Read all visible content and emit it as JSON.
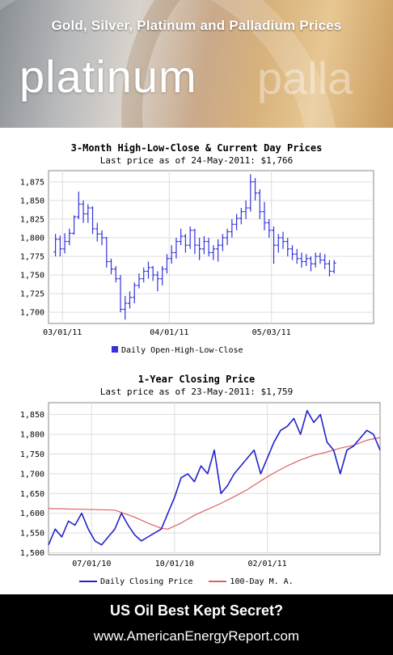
{
  "banner": {
    "title": "Gold, Silver, Platinum and Palladium Prices",
    "word_main": "platinum",
    "word_ghost": "palla"
  },
  "colors": {
    "ohlc": "#3333dd",
    "closing": "#2222cc",
    "ma": "#e06060",
    "frame": "#888888",
    "grid": "#dddddd"
  },
  "chart_data": [
    {
      "type": "line",
      "subtype": "ohlc",
      "title": "3-Month High-Low-Close & Current Day Prices",
      "subtitle": "Last price as of 24-May-2011: $1,766",
      "xlabel": "",
      "ylabel": "",
      "ylim": [
        1685,
        1890
      ],
      "yticks": [
        1700,
        1725,
        1750,
        1775,
        1800,
        1825,
        1850,
        1875
      ],
      "ytick_labels": [
        "1,700",
        "1,725",
        "1,750",
        "1,775",
        "1,800",
        "1,825",
        "1,850",
        "1,875"
      ],
      "xlim": [
        0,
        70
      ],
      "xticks": [
        {
          "pos": 3,
          "label": "03/01/11"
        },
        {
          "pos": 26,
          "label": "04/01/11"
        },
        {
          "pos": 48,
          "label": "05/03/11"
        }
      ],
      "grid": true,
      "legend": {
        "position": "bottom",
        "entries": [
          "Daily Open-High-Low-Close"
        ]
      },
      "bars": [
        [
          1781,
          1805,
          1775,
          1798
        ],
        [
          1798,
          1803,
          1775,
          1785
        ],
        [
          1785,
          1806,
          1779,
          1795
        ],
        [
          1795,
          1812,
          1790,
          1806
        ],
        [
          1806,
          1830,
          1804,
          1828
        ],
        [
          1828,
          1862,
          1825,
          1845
        ],
        [
          1845,
          1850,
          1820,
          1832
        ],
        [
          1832,
          1845,
          1820,
          1840
        ],
        [
          1840,
          1842,
          1805,
          1812
        ],
        [
          1812,
          1820,
          1795,
          1805
        ],
        [
          1805,
          1810,
          1790,
          1800
        ],
        [
          1800,
          1801,
          1760,
          1768
        ],
        [
          1768,
          1772,
          1751,
          1758
        ],
        [
          1758,
          1762,
          1740,
          1745
        ],
        [
          1745,
          1750,
          1700,
          1704
        ],
        [
          1704,
          1722,
          1690,
          1712
        ],
        [
          1712,
          1728,
          1705,
          1720
        ],
        [
          1720,
          1740,
          1712,
          1736
        ],
        [
          1736,
          1752,
          1732,
          1745
        ],
        [
          1745,
          1760,
          1740,
          1755
        ],
        [
          1755,
          1768,
          1745,
          1760
        ],
        [
          1760,
          1762,
          1742,
          1750
        ],
        [
          1750,
          1755,
          1728,
          1745
        ],
        [
          1745,
          1762,
          1736,
          1758
        ],
        [
          1758,
          1778,
          1752,
          1772
        ],
        [
          1772,
          1790,
          1765,
          1780
        ],
        [
          1780,
          1800,
          1772,
          1795
        ],
        [
          1795,
          1812,
          1790,
          1802
        ],
        [
          1802,
          1805,
          1780,
          1790
        ],
        [
          1790,
          1815,
          1785,
          1810
        ],
        [
          1810,
          1812,
          1778,
          1790
        ],
        [
          1790,
          1800,
          1770,
          1785
        ],
        [
          1785,
          1802,
          1778,
          1795
        ],
        [
          1795,
          1800,
          1775,
          1780
        ],
        [
          1780,
          1790,
          1770,
          1785
        ],
        [
          1785,
          1798,
          1768,
          1790
        ],
        [
          1790,
          1805,
          1782,
          1800
        ],
        [
          1800,
          1812,
          1790,
          1808
        ],
        [
          1808,
          1825,
          1800,
          1818
        ],
        [
          1818,
          1832,
          1810,
          1826
        ],
        [
          1826,
          1840,
          1818,
          1835
        ],
        [
          1835,
          1850,
          1825,
          1840
        ],
        [
          1840,
          1885,
          1835,
          1875
        ],
        [
          1875,
          1880,
          1850,
          1860
        ],
        [
          1860,
          1865,
          1825,
          1835
        ],
        [
          1835,
          1848,
          1810,
          1820
        ],
        [
          1820,
          1825,
          1800,
          1810
        ],
        [
          1810,
          1815,
          1765,
          1790
        ],
        [
          1790,
          1805,
          1780,
          1800
        ],
        [
          1800,
          1808,
          1785,
          1795
        ],
        [
          1795,
          1800,
          1775,
          1785
        ],
        [
          1785,
          1790,
          1770,
          1778
        ],
        [
          1778,
          1785,
          1765,
          1772
        ],
        [
          1772,
          1780,
          1760,
          1768
        ],
        [
          1768,
          1778,
          1762,
          1772
        ],
        [
          1772,
          1775,
          1755,
          1765
        ],
        [
          1765,
          1780,
          1760,
          1775
        ],
        [
          1775,
          1780,
          1765,
          1770
        ],
        [
          1770,
          1778,
          1758,
          1765
        ],
        [
          1765,
          1770,
          1748,
          1755
        ],
        [
          1755,
          1770,
          1752,
          1766
        ]
      ]
    },
    {
      "type": "line",
      "title": "1-Year Closing Price",
      "subtitle": "Last price as of 23-May-2011: $1,759",
      "xlabel": "",
      "ylabel": "",
      "ylim": [
        1495,
        1880
      ],
      "yticks": [
        1500,
        1550,
        1600,
        1650,
        1700,
        1750,
        1800,
        1850
      ],
      "ytick_labels": [
        "1,500",
        "1,550",
        "1,600",
        "1,650",
        "1,700",
        "1,750",
        "1,800",
        "1,850"
      ],
      "xlim": [
        0,
        100
      ],
      "xticks": [
        {
          "pos": 13,
          "label": "07/01/10"
        },
        {
          "pos": 38,
          "label": "10/01/10"
        },
        {
          "pos": 66,
          "label": "02/01/11"
        }
      ],
      "grid": true,
      "legend": {
        "position": "bottom",
        "entries": [
          "Daily Closing Price",
          "100-Day M. A."
        ]
      },
      "series": [
        {
          "name": "Daily Closing Price",
          "x": [
            0,
            2,
            4,
            6,
            8,
            10,
            12,
            14,
            16,
            18,
            20,
            22,
            24,
            26,
            28,
            30,
            32,
            34,
            36,
            38,
            40,
            42,
            44,
            46,
            48,
            50,
            52,
            54,
            56,
            58,
            60,
            62,
            64,
            66,
            68,
            70,
            72,
            74,
            76,
            78,
            80,
            82,
            84,
            86,
            88,
            90,
            92,
            94,
            96,
            98,
            100
          ],
          "values": [
            1520,
            1560,
            1540,
            1580,
            1570,
            1600,
            1560,
            1530,
            1520,
            1540,
            1560,
            1600,
            1570,
            1545,
            1530,
            1540,
            1550,
            1560,
            1600,
            1640,
            1690,
            1700,
            1680,
            1720,
            1700,
            1760,
            1650,
            1670,
            1700,
            1720,
            1740,
            1760,
            1700,
            1740,
            1780,
            1810,
            1820,
            1840,
            1800,
            1860,
            1830,
            1850,
            1780,
            1760,
            1700,
            1760,
            1770,
            1790,
            1810,
            1800,
            1760
          ]
        },
        {
          "name": "100-Day M. A.",
          "x": [
            0,
            10,
            20,
            26,
            30,
            34,
            36,
            40,
            44,
            48,
            52,
            56,
            60,
            64,
            68,
            72,
            76,
            80,
            84,
            88,
            92,
            96,
            100
          ],
          "values": [
            1612,
            1610,
            1608,
            1590,
            1575,
            1562,
            1560,
            1575,
            1595,
            1610,
            1625,
            1642,
            1660,
            1682,
            1702,
            1720,
            1735,
            1747,
            1755,
            1765,
            1772,
            1785,
            1792
          ]
        }
      ]
    }
  ],
  "footer": {
    "line1": "US Oil Best Kept Secret?",
    "line2": "www.AmericanEnergyReport.com"
  }
}
